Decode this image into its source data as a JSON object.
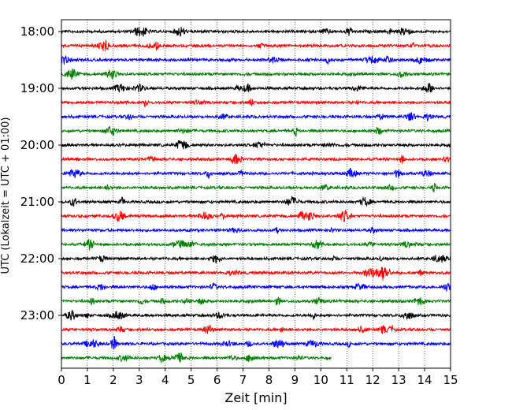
{
  "chart_data": {
    "type": "line",
    "title": "",
    "xlabel": "Zeit  [min]",
    "ylabel": "UTC (Lokalzeit = UTC + 01:00)",
    "xlim": [
      0,
      15
    ],
    "x_ticks": [
      "0",
      "1",
      "2",
      "3",
      "4",
      "5",
      "6",
      "7",
      "8",
      "9",
      "10",
      "11",
      "12",
      "13",
      "14",
      "15"
    ],
    "y_tick_labels": [
      "18:00",
      "19:00",
      "20:00",
      "21:00",
      "22:00",
      "23:00"
    ],
    "grid": "vertical dotted",
    "legend": "none",
    "trace_colors": [
      "#000000",
      "#ff0000",
      "#0000ff",
      "#007f00"
    ],
    "series": [
      {
        "start": "18:00",
        "end_min": 15
      },
      {
        "start": "18:15",
        "end_min": 15
      },
      {
        "start": "18:30",
        "end_min": 15
      },
      {
        "start": "18:45",
        "end_min": 15
      },
      {
        "start": "19:00",
        "end_min": 15
      },
      {
        "start": "19:15",
        "end_min": 15
      },
      {
        "start": "19:30",
        "end_min": 15
      },
      {
        "start": "19:45",
        "end_min": 15
      },
      {
        "start": "20:00",
        "end_min": 15
      },
      {
        "start": "20:15",
        "end_min": 15
      },
      {
        "start": "20:30",
        "end_min": 15
      },
      {
        "start": "20:45",
        "end_min": 15
      },
      {
        "start": "21:00",
        "end_min": 15
      },
      {
        "start": "21:15",
        "end_min": 15
      },
      {
        "start": "21:30",
        "end_min": 15
      },
      {
        "start": "21:45",
        "end_min": 15
      },
      {
        "start": "22:00",
        "end_min": 15
      },
      {
        "start": "22:15",
        "end_min": 15
      },
      {
        "start": "22:30",
        "end_min": 15
      },
      {
        "start": "22:45",
        "end_min": 15
      },
      {
        "start": "23:00",
        "end_min": 15
      },
      {
        "start": "23:15",
        "end_min": 15
      },
      {
        "start": "23:30",
        "end_min": 15
      },
      {
        "start": "23:45",
        "end_min": 10.4
      }
    ]
  }
}
